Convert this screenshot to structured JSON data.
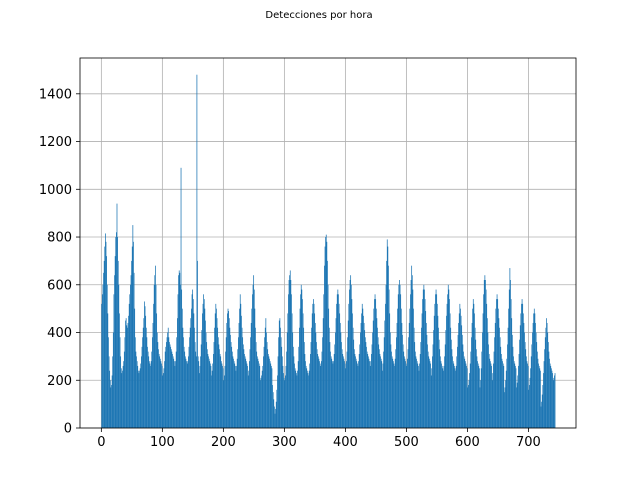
{
  "chart_data": {
    "type": "bar",
    "title": "Detecciones por hora",
    "xlabel": "",
    "ylabel": "",
    "xlim": [
      -35,
      778
    ],
    "ylim": [
      0,
      1550
    ],
    "xticks": [
      0,
      100,
      200,
      300,
      400,
      500,
      600,
      700
    ],
    "yticks": [
      0,
      200,
      400,
      600,
      800,
      1000,
      1200,
      1400
    ],
    "grid": true,
    "bar_color": "#1f77b4",
    "x_start": 0,
    "x_end": 744,
    "values": [
      520,
      560,
      600,
      650,
      700,
      760,
      815,
      780,
      720,
      600,
      480,
      380,
      300,
      240,
      200,
      170,
      180,
      220,
      300,
      400,
      560,
      640,
      720,
      800,
      820,
      940,
      800,
      700,
      600,
      480,
      380,
      300,
      250,
      230,
      240,
      260,
      280,
      320,
      380,
      450,
      460,
      430,
      420,
      440,
      470,
      520,
      560,
      600,
      640,
      700,
      760,
      850,
      780,
      650,
      500,
      380,
      320,
      300,
      280,
      260,
      240,
      230,
      240,
      250,
      270,
      300,
      340,
      380,
      420,
      460,
      530,
      510,
      470,
      420,
      380,
      340,
      320,
      300,
      280,
      270,
      260,
      280,
      320,
      380,
      440,
      520,
      600,
      640,
      680,
      600,
      480,
      400,
      360,
      330,
      310,
      300,
      290,
      280,
      270,
      260,
      220,
      230,
      250,
      280,
      320,
      340,
      360,
      380,
      400,
      420,
      380,
      360,
      350,
      340,
      330,
      320,
      310,
      300,
      290,
      280,
      260,
      280,
      320,
      380,
      460,
      560,
      640,
      660,
      650,
      600,
      1090,
      580,
      500,
      420,
      380,
      340,
      320,
      300,
      290,
      280,
      270,
      280,
      300,
      340,
      380,
      420,
      460,
      500,
      560,
      580,
      540,
      480,
      420,
      360,
      320,
      300,
      1480,
      700,
      300,
      280,
      230,
      260,
      300,
      350,
      410,
      480,
      520,
      560,
      540,
      500,
      450,
      400,
      360,
      330,
      310,
      300,
      290,
      280,
      270,
      260,
      220,
      240,
      270,
      310,
      360,
      420,
      480,
      520,
      500,
      460,
      420,
      380,
      350,
      330,
      310,
      300,
      280,
      270,
      260,
      250,
      200,
      220,
      260,
      320,
      380,
      440,
      480,
      500,
      490,
      460,
      420,
      390,
      360,
      340,
      320,
      300,
      290,
      280,
      270,
      260,
      240,
      260,
      290,
      330,
      380,
      440,
      500,
      560,
      520,
      470,
      420,
      380,
      350,
      330,
      310,
      300,
      290,
      280,
      270,
      260,
      220,
      240,
      280,
      330,
      380,
      440,
      500,
      560,
      600,
      640,
      580,
      500,
      420,
      360,
      320,
      300,
      290,
      280,
      270,
      260,
      200,
      210,
      220,
      240,
      260,
      300,
      340,
      380,
      420,
      460,
      400,
      360,
      330,
      310,
      300,
      290,
      280,
      270,
      260,
      250,
      180,
      150,
      120,
      90,
      60,
      80,
      110,
      160,
      220,
      300,
      380,
      450,
      460,
      420,
      380,
      340,
      300,
      260,
      230,
      210,
      200,
      220,
      260,
      320,
      400,
      480,
      560,
      620,
      640,
      660,
      620,
      560,
      480,
      400,
      340,
      300,
      270,
      250,
      240,
      230,
      220,
      240,
      280,
      340,
      420,
      500,
      560,
      600,
      580,
      540,
      480,
      420,
      360,
      310,
      280,
      260,
      250,
      240,
      230,
      220,
      240,
      270,
      310,
      360,
      420,
      480,
      520,
      540,
      520,
      480,
      440,
      400,
      360,
      330,
      310,
      300,
      290,
      280,
      270,
      260,
      280,
      320,
      380,
      460,
      560,
      680,
      760,
      800,
      810,
      780,
      700,
      600,
      500,
      420,
      360,
      320,
      300,
      290,
      280,
      270,
      280,
      310,
      350,
      400,
      460,
      520,
      560,
      580,
      560,
      520,
      480,
      440,
      400,
      360,
      330,
      310,
      300,
      290,
      280,
      270,
      250,
      280,
      320,
      380,
      450,
      520,
      580,
      620,
      640,
      600,
      540,
      480,
      420,
      370,
      330,
      310,
      300,
      290,
      280,
      270,
      260,
      280,
      310,
      350,
      400,
      440,
      480,
      520,
      500,
      470,
      440,
      410,
      380,
      360,
      340,
      320,
      310,
      300,
      290,
      280,
      260,
      280,
      310,
      350,
      400,
      450,
      500,
      540,
      560,
      540,
      500,
      460,
      420,
      380,
      350,
      330,
      310,
      300,
      290,
      280,
      240,
      270,
      320,
      380,
      450,
      520,
      600,
      700,
      790,
      760,
      680,
      580,
      480,
      400,
      350,
      320,
      300,
      290,
      280,
      270,
      260,
      290,
      330,
      380,
      440,
      500,
      560,
      600,
      620,
      600,
      560,
      500,
      440,
      390,
      350,
      320,
      300,
      290,
      280,
      270,
      260,
      290,
      330,
      380,
      440,
      500,
      560,
      620,
      680,
      640,
      580,
      500,
      420,
      360,
      320,
      300,
      290,
      280,
      270,
      260,
      240,
      270,
      310,
      360,
      420,
      480,
      540,
      580,
      600,
      580,
      540,
      490,
      440,
      390,
      350,
      320,
      300,
      290,
      280,
      270,
      220,
      250,
      300,
      350,
      410,
      470,
      520,
      560,
      580,
      560,
      520,
      470,
      420,
      370,
      330,
      300,
      280,
      270,
      260,
      250,
      240,
      260,
      300,
      350,
      410,
      470,
      520,
      560,
      600,
      580,
      540,
      480,
      420,
      370,
      330,
      300,
      280,
      270,
      260,
      250,
      240,
      260,
      300,
      340,
      390,
      440,
      480,
      520,
      500,
      470,
      430,
      390,
      350,
      320,
      300,
      290,
      280,
      270,
      260,
      250,
      170,
      180,
      200,
      230,
      270,
      320,
      380,
      440,
      500,
      540,
      520,
      480,
      420,
      370,
      330,
      300,
      280,
      270,
      260,
      250,
      170,
      200,
      250,
      320,
      400,
      480,
      560,
      620,
      640,
      620,
      580,
      520,
      460,
      400,
      350,
      310,
      290,
      280,
      270,
      260,
      200,
      230,
      270,
      320,
      380,
      440,
      500,
      540,
      560,
      540,
      500,
      460,
      420,
      380,
      340,
      310,
      290,
      280,
      270,
      260,
      150,
      170,
      200,
      240,
      290,
      350,
      420,
      500,
      580,
      670,
      620,
      540,
      460,
      390,
      340,
      300,
      280,
      270,
      260,
      250,
      170,
      190,
      220,
      260,
      310,
      370,
      430,
      480,
      520,
      540,
      520,
      480,
      440,
      400,
      360,
      330,
      300,
      280,
      270,
      260,
      160,
      180,
      210,
      250,
      300,
      350,
      400,
      440,
      480,
      500,
      480,
      440,
      400,
      360,
      320,
      290,
      270,
      260,
      250,
      240,
      90,
      110,
      140,
      180,
      230,
      280,
      330,
      380,
      420,
      460,
      440,
      400,
      360,
      320,
      290,
      270,
      260,
      250,
      240,
      230,
      200,
      210,
      220,
      230
    ]
  }
}
